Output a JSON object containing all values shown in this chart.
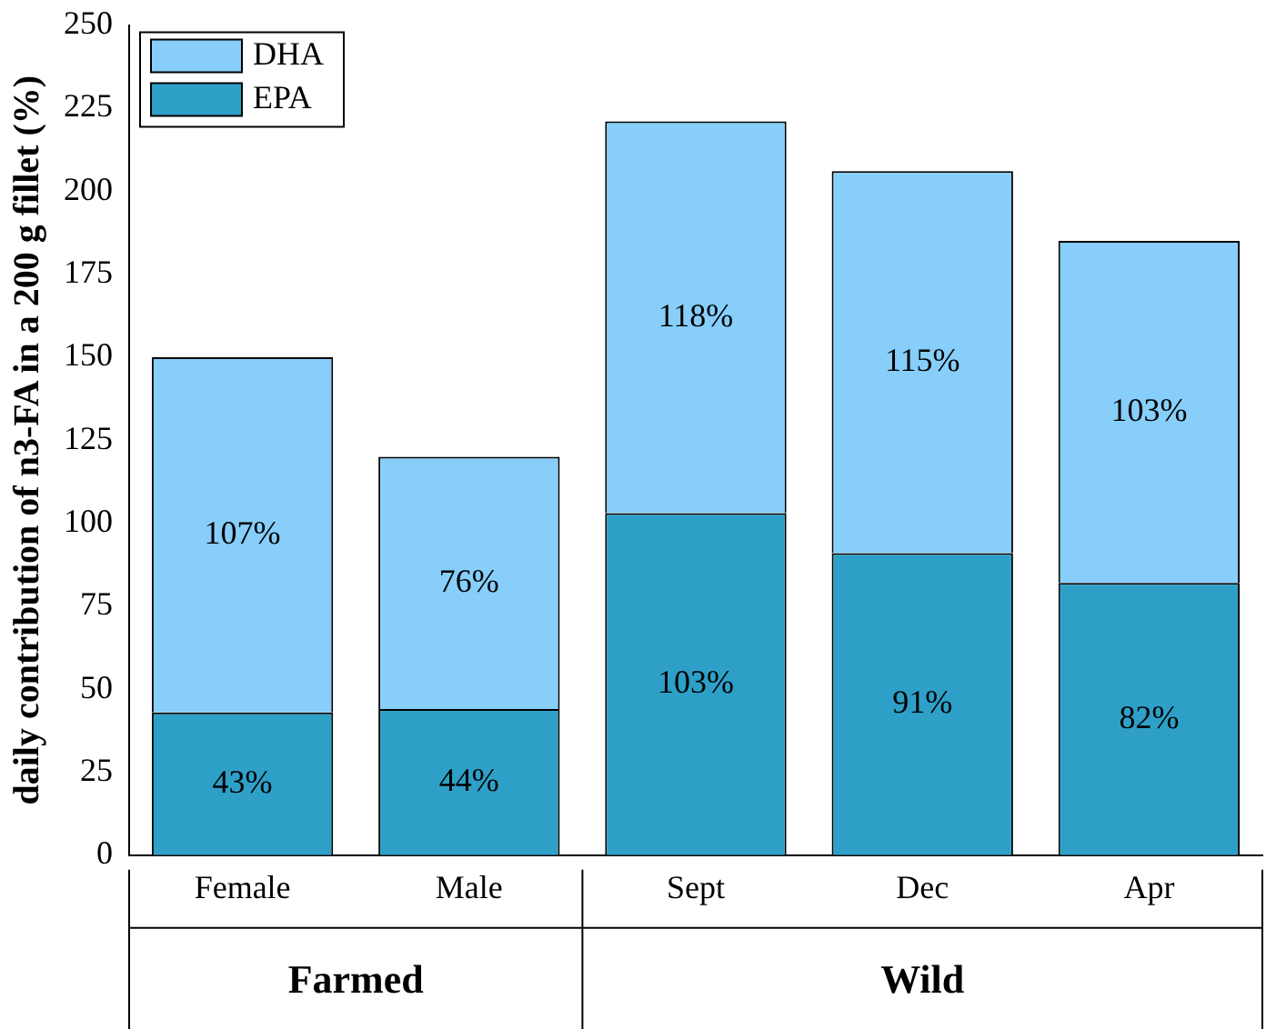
{
  "chart_data": {
    "type": "bar",
    "ylabel": "daily contribution of n3-FA in a 200 g fillet (%)",
    "categories": [
      "Female",
      "Male",
      "Sept",
      "Dec",
      "Apr"
    ],
    "stacked": true,
    "ylim": [
      0,
      250
    ],
    "yticks": [
      0,
      25,
      50,
      75,
      100,
      125,
      150,
      175,
      200,
      225,
      250
    ],
    "grid": false,
    "legend": "top left",
    "annotations": [
      "Farmed",
      "Wild"
    ],
    "series": [
      {
        "name": "EPA",
        "color": "#2ea0c8",
        "values": [
          43,
          44,
          103,
          91,
          82
        ],
        "value_labels": [
          "43%",
          "44%",
          "103%",
          "91%",
          "82%"
        ]
      },
      {
        "name": "DHA",
        "color": "#87cefa",
        "values": [
          107,
          76,
          118,
          115,
          103
        ],
        "value_labels": [
          "107%",
          "76%",
          "118%",
          "115%",
          "103%"
        ]
      }
    ]
  }
}
